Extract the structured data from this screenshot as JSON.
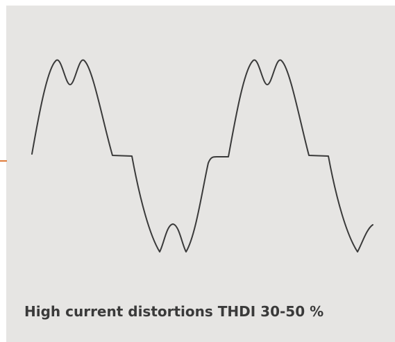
{
  "caption": "High current distortions THDI 30-50 %",
  "colors": {
    "panel_background": "#e6e5e3",
    "waveform": "#3a3a3a",
    "caption_text": "#3a3a3a",
    "accent": "#e07b39"
  },
  "waveform": {
    "description_type": "distorted-sine",
    "cycles_shown": 1.8
  }
}
